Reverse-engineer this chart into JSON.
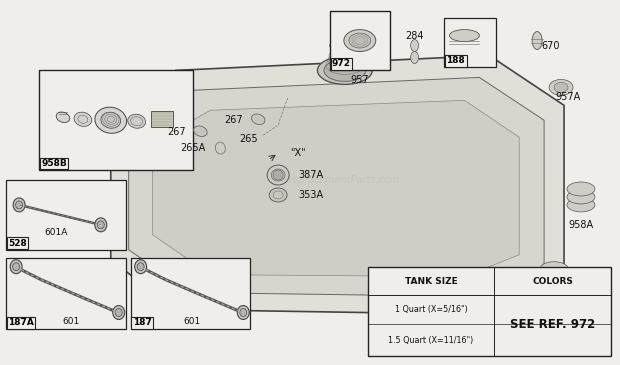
{
  "bg_color": "#f0eeea",
  "fig_w": 6.2,
  "fig_h": 3.65,
  "dpi": 100,
  "watermark": "eReplacementParts.com",
  "watermark_color": "#c8c4bc",
  "table": {
    "col1_header": "TANK SIZE",
    "col2_header": "COLORS",
    "row1_col1": "1 Quart (X=5/16\")",
    "row2_col1": "1.5 Quart (X=11/16\")",
    "col2_value": "SEE REF. 972"
  }
}
